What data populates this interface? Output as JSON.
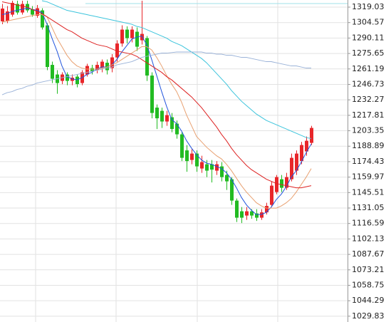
{
  "chart_data": {
    "type": "candlestick",
    "up_color": "#e8262a",
    "down_color": "#22bb22",
    "grid": true,
    "ylim": [
      1024.4,
      1325.7
    ],
    "yticks": [
      1319.03,
      1304.57,
      1290.11,
      1275.65,
      1261.19,
      1246.73,
      1232.27,
      1217.81,
      1203.35,
      1188.89,
      1174.43,
      1159.97,
      1145.51,
      1131.05,
      1116.59,
      1102.13,
      1087.67,
      1073.21,
      1058.75,
      1044.29,
      1029.83
    ],
    "open": [
      1305.7,
      1306,
      1312,
      1322,
      1314,
      1322,
      1317,
      1311,
      1316,
      1302,
      1265,
      1256,
      1250,
      1256,
      1250,
      1254,
      1248,
      1256,
      1262,
      1260,
      1262,
      1267,
      1262,
      1272,
      1285,
      1298,
      1290,
      1296,
      1288,
      1290,
      1255,
      1225,
      1222,
      1212,
      1216,
      1210,
      1200,
      1185,
      1176,
      1182,
      1168,
      1172,
      1172,
      1166,
      1170,
      1162,
      1158,
      1138,
      1128,
      1124,
      1128,
      1126,
      1122,
      1127,
      1134,
      1146,
      1158,
      1150,
      1158,
      1166,
      1175,
      1184,
      1192
    ],
    "high": [
      1322,
      1320,
      1325,
      1325,
      1325,
      1325,
      1320,
      1321,
      1318,
      1304,
      1268,
      1260,
      1258,
      1258,
      1256,
      1256,
      1260,
      1266,
      1265,
      1268,
      1270,
      1270,
      1275,
      1288,
      1302,
      1301,
      1301,
      1300,
      1325,
      1292,
      1258,
      1228,
      1225,
      1222,
      1220,
      1213,
      1202,
      1190,
      1186,
      1185,
      1180,
      1176,
      1176,
      1175,
      1174,
      1166,
      1160,
      1140,
      1132,
      1132,
      1130,
      1130,
      1130,
      1136,
      1156,
      1162,
      1162,
      1164,
      1182,
      1185,
      1193,
      1198,
      1208
    ],
    "low": [
      1303,
      1304,
      1310,
      1312,
      1312,
      1314,
      1310,
      1309,
      1298,
      1260,
      1248,
      1238,
      1247,
      1246,
      1246,
      1244,
      1246,
      1254,
      1256,
      1257,
      1258,
      1256,
      1258,
      1268,
      1282,
      1285,
      1286,
      1278,
      1284,
      1250,
      1215,
      1205,
      1206,
      1208,
      1202,
      1196,
      1175,
      1165,
      1172,
      1165,
      1164,
      1160,
      1155,
      1162,
      1156,
      1148,
      1134,
      1118,
      1117,
      1120,
      1121,
      1119,
      1120,
      1125,
      1132,
      1144,
      1146,
      1148,
      1156,
      1162,
      1172,
      1180,
      1190
    ],
    "close": [
      1317.7,
      1315,
      1323,
      1314,
      1322,
      1316,
      1312,
      1318,
      1300,
      1263,
      1252,
      1248,
      1256,
      1250,
      1253,
      1247,
      1258,
      1264,
      1259,
      1265,
      1268,
      1260,
      1272,
      1285,
      1298,
      1290,
      1298,
      1282,
      1294,
      1255,
      1220,
      1215,
      1212,
      1218,
      1205,
      1200,
      1178,
      1175,
      1182,
      1170,
      1174,
      1166,
      1167,
      1172,
      1160,
      1156,
      1138,
      1122,
      1122,
      1128,
      1124,
      1122,
      1127,
      1133,
      1152,
      1160,
      1150,
      1160,
      1178,
      1182,
      1190,
      1194,
      1206
    ],
    "ma_lines": [
      {
        "color": "#2255dd",
        "values": [
          1312,
          1313,
          1315,
          1316,
          1317,
          1318,
          1317,
          1316,
          1314,
          1303,
          1290,
          1278,
          1264,
          1254,
          1252,
          1251,
          1253,
          1256,
          1258,
          1261,
          1263,
          1263,
          1265,
          1270,
          1277,
          1283,
          1289,
          1291,
          1292,
          1284,
          1270,
          1255,
          1240,
          1226,
          1214,
          1210,
          1203,
          1194,
          1187,
          1181,
          1176,
          1173,
          1172,
          1170,
          1168,
          1164,
          1158,
          1150,
          1141,
          1134,
          1129,
          1125,
          1125,
          1127,
          1132,
          1139,
          1144,
          1151,
          1160,
          1166,
          1174,
          1183,
          1191
        ]
      },
      {
        "color": "#e8a070",
        "values": [
          1305,
          1306,
          1307,
          1308,
          1309,
          1310,
          1311,
          1312,
          1312,
          1310,
          1300,
          1290,
          1282,
          1274,
          1268,
          1264,
          1262,
          1261,
          1261,
          1261,
          1262,
          1263,
          1265,
          1267,
          1270,
          1273,
          1276,
          1279,
          1282,
          1282,
          1279,
          1272,
          1264,
          1255,
          1247,
          1240,
          1230,
          1218,
          1208,
          1198,
          1193,
          1188,
          1184,
          1180,
          1177,
          1172,
          1166,
          1159,
          1152,
          1146,
          1141,
          1136,
          1133,
          1131,
          1131,
          1131,
          1133,
          1136,
          1140,
          1146,
          1153,
          1160,
          1168
        ]
      },
      {
        "color": "#dd2222",
        "values": [
          1324,
          1323,
          1322,
          1321,
          1320,
          1319,
          1317,
          1315,
          1313,
          1310,
          1307,
          1304,
          1301,
          1298,
          1296,
          1293,
          1290,
          1288,
          1286,
          1284,
          1283,
          1282,
          1280,
          1278,
          1277,
          1276,
          1275,
          1273,
          1270,
          1267,
          1264,
          1261,
          1258,
          1254,
          1251,
          1247,
          1243,
          1239,
          1235,
          1230,
          1225,
          1219,
          1213,
          1207,
          1200,
          1194,
          1187,
          1181,
          1176,
          1171,
          1167,
          1164,
          1161,
          1158,
          1156,
          1154,
          1153,
          1152,
          1151,
          1150,
          1150,
          1151,
          1152
        ]
      },
      {
        "color": "#3cc4dc",
        "values": [
          null,
          null,
          null,
          null,
          null,
          null,
          null,
          null,
          1325,
          1324,
          1322,
          1320,
          1318,
          1316,
          1315,
          1314,
          1313,
          1312,
          1311,
          1310,
          1309,
          1308,
          1307,
          1306,
          1305,
          1304,
          1303,
          1301,
          1300,
          1298,
          1296,
          1294,
          1292,
          1290,
          1287,
          1285,
          1283,
          1280,
          1277,
          1274,
          1271,
          1267,
          1262,
          1257,
          1252,
          1247,
          1241,
          1236,
          1231,
          1227,
          1223,
          1219,
          1216,
          1213,
          1211,
          1209,
          1207,
          1205,
          1203,
          1201,
          1199,
          1197,
          1196
        ]
      },
      {
        "color": "#9ab2d8",
        "values": [
          1237,
          1239,
          1240,
          1242,
          1243,
          1245,
          1246,
          1248,
          1249,
          1250,
          1251,
          1252,
          1253,
          1254,
          1255,
          1256,
          1257,
          1258,
          1259,
          1260,
          1261,
          1262,
          1263,
          1265,
          1266,
          1267,
          1268,
          1270,
          1272,
          1273,
          1274,
          1275,
          1276,
          1276,
          1276.5,
          1277,
          1277,
          1277,
          1277,
          1277,
          1277,
          1276,
          1276,
          1275,
          1275,
          1274,
          1274,
          1273,
          1272,
          1272,
          1271,
          1270,
          1269,
          1268,
          1268,
          1267,
          1266,
          1265,
          1264,
          1264,
          1263,
          1262,
          1262
        ]
      }
    ]
  }
}
